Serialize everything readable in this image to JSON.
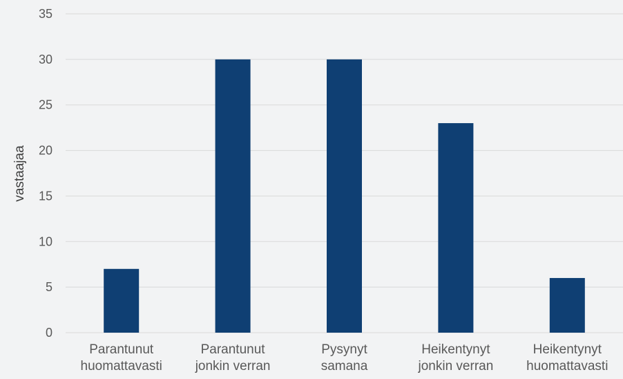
{
  "chart_data": {
    "type": "bar",
    "categories": [
      [
        "Parantunut",
        "huomattavasti"
      ],
      [
        "Parantunut",
        "jonkin verran"
      ],
      [
        "Pysynyt",
        "samana"
      ],
      [
        "Heikentynyt",
        "jonkin verran"
      ],
      [
        "Heikentynyt",
        "huomattavasti"
      ]
    ],
    "values": [
      7,
      30,
      30,
      23,
      6
    ],
    "ylabel": "vastaajaa",
    "xlabel": "",
    "ylim": [
      0,
      35
    ],
    "yticks": [
      0,
      5,
      10,
      15,
      20,
      25,
      30,
      35
    ],
    "grid": true,
    "bar_color": "#0f3f73"
  }
}
